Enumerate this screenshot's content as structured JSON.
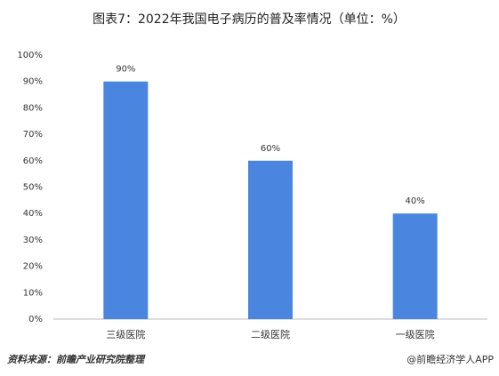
{
  "chart_data": {
    "type": "bar",
    "title": "图表7：2022年我国电子病历的普及率情况（单位：%）",
    "categories": [
      "三级医院",
      "二级医院",
      "一级医院"
    ],
    "values": [
      90,
      60,
      40
    ],
    "value_labels": [
      "90%",
      "60%",
      "40%"
    ],
    "color": "#4a86e0",
    "ylim": [
      0,
      100
    ],
    "yticks": [
      {
        "value": 0,
        "label": "0%"
      },
      {
        "value": 10,
        "label": "10%"
      },
      {
        "value": 20,
        "label": "20%"
      },
      {
        "value": 30,
        "label": "30%"
      },
      {
        "value": 40,
        "label": "40%"
      },
      {
        "value": 50,
        "label": "50%"
      },
      {
        "value": 60,
        "label": "60%"
      },
      {
        "value": 70,
        "label": "70%"
      },
      {
        "value": 80,
        "label": "80%"
      },
      {
        "value": 90,
        "label": "90%"
      },
      {
        "value": 100,
        "label": "100%"
      }
    ],
    "grid": false
  },
  "footer": {
    "source": "资料来源：前瞻产业研究院整理",
    "credit": "@前瞻经济学人APP"
  }
}
